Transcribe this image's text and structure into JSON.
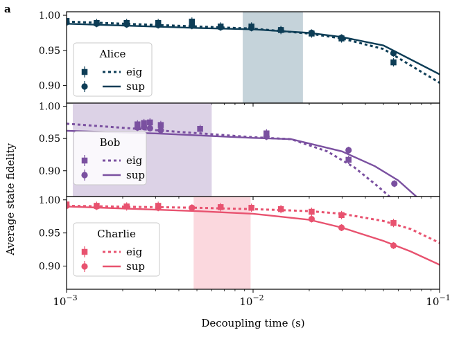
{
  "panel_label": "a",
  "chart_data": {
    "type": "line",
    "shared_x": {
      "label": "Decoupling time (s)",
      "scale": "log",
      "xlim": [
        0.001,
        0.1
      ],
      "ticks": [
        {
          "value": 0.001,
          "base": "10",
          "exp": "−3"
        },
        {
          "value": 0.01,
          "base": "10",
          "exp": "−2"
        },
        {
          "value": 0.1,
          "base": "10",
          "exp": "−1"
        }
      ]
    },
    "shared_ylabel": "Average state fidelity",
    "legend": {
      "position": "left",
      "entry_labels": [
        "eig",
        "sup"
      ]
    },
    "panels": [
      {
        "name": "Alice",
        "color": "#0d3d56",
        "shade_color": "#c5d3da",
        "shaded_x": [
          0.0088,
          0.0185
        ],
        "ylim": [
          0.875,
          1.005
        ],
        "yticks": [
          "1.00",
          "0.95",
          "0.90"
        ],
        "ytick_values": [
          1.0,
          0.95,
          0.9
        ],
        "eig_line": {
          "x": [
            0.001,
            0.005,
            0.01,
            0.02,
            0.03,
            0.05,
            0.1
          ],
          "y": [
            0.991,
            0.984,
            0.981,
            0.974,
            0.967,
            0.952,
            0.904
          ]
        },
        "sup_line": {
          "x": [
            0.001,
            0.005,
            0.01,
            0.02,
            0.03,
            0.05,
            0.1
          ],
          "y": [
            0.988,
            0.982,
            0.98,
            0.975,
            0.969,
            0.957,
            0.916
          ]
        },
        "eig_points": {
          "x": [
            0.001,
            0.00145,
            0.0021,
            0.0031,
            0.0047,
            0.0067,
            0.0098,
            0.0141,
            0.0206,
            0.0298,
            0.0566
          ],
          "y": [
            0.992,
            0.989,
            0.989,
            0.989,
            0.991,
            0.984,
            0.984,
            0.979,
            0.974,
            0.967,
            0.933
          ]
        },
        "sup_points": {
          "x": [
            0.001,
            0.00145,
            0.0021,
            0.0031,
            0.0047,
            0.0067,
            0.0098,
            0.0141,
            0.0206,
            0.0298,
            0.0566
          ],
          "y": [
            0.99,
            0.988,
            0.987,
            0.986,
            0.985,
            0.983,
            0.982,
            0.979,
            0.975,
            0.968,
            0.946
          ]
        }
      },
      {
        "name": "Bob",
        "color": "#7a50a0",
        "shade_color": "#dcd2e6",
        "shaded_x": [
          0.00108,
          0.006
        ],
        "ylim": [
          0.86,
          1.005
        ],
        "yticks": [
          "1.00",
          "0.95",
          "0.90"
        ],
        "ytick_values": [
          1.0,
          0.95,
          0.9
        ],
        "eig_line": {
          "x": [
            0.001,
            0.003,
            0.01,
            0.016,
            0.025,
            0.035,
            0.047,
            0.06
          ],
          "y": [
            0.973,
            0.963,
            0.952,
            0.949,
            0.93,
            0.905,
            0.875,
            0.848
          ]
        },
        "sup_line": {
          "x": [
            0.001,
            0.003,
            0.01,
            0.016,
            0.03,
            0.045,
            0.06,
            0.075,
            0.09
          ],
          "y": [
            0.962,
            0.958,
            0.951,
            0.949,
            0.93,
            0.907,
            0.885,
            0.86,
            0.835
          ]
        },
        "eig_points": {
          "x": [
            0.0024,
            0.0026,
            0.0028,
            0.0032,
            0.0052,
            0.0118,
            0.0325
          ],
          "y": [
            0.972,
            0.974,
            0.975,
            0.971,
            0.965,
            0.958,
            0.917
          ]
        },
        "sup_points": {
          "x": [
            0.0024,
            0.0026,
            0.0028,
            0.0032,
            0.0118,
            0.0325,
            0.0572
          ],
          "y": [
            0.967,
            0.968,
            0.966,
            0.963,
            0.953,
            0.932,
            0.88
          ]
        }
      },
      {
        "name": "Charlie",
        "color": "#e8526f",
        "shade_color": "#fbd8de",
        "shaded_x": [
          0.0048,
          0.0097
        ],
        "ylim": [
          0.865,
          1.005
        ],
        "yticks": [
          "1.00",
          "0.95",
          "0.90"
        ],
        "ytick_values": [
          1.0,
          0.95,
          0.9
        ],
        "eig_line": {
          "x": [
            0.001,
            0.005,
            0.01,
            0.02,
            0.03,
            0.05,
            0.07,
            0.1
          ],
          "y": [
            0.991,
            0.988,
            0.986,
            0.983,
            0.979,
            0.968,
            0.956,
            0.935
          ]
        },
        "sup_line": {
          "x": [
            0.001,
            0.005,
            0.01,
            0.02,
            0.03,
            0.05,
            0.07,
            0.1
          ],
          "y": [
            0.99,
            0.983,
            0.979,
            0.97,
            0.958,
            0.938,
            0.922,
            0.902
          ]
        },
        "eig_points": {
          "x": [
            0.001,
            0.00145,
            0.0021,
            0.0031,
            0.0067,
            0.0098,
            0.0141,
            0.0206,
            0.0298,
            0.0566
          ],
          "y": [
            0.993,
            0.991,
            0.99,
            0.991,
            0.989,
            0.988,
            0.986,
            0.982,
            0.977,
            0.965
          ]
        },
        "sup_points": {
          "x": [
            0.001,
            0.00145,
            0.0031,
            0.0047,
            0.0206,
            0.0298,
            0.0566
          ],
          "y": [
            0.991,
            0.99,
            0.988,
            0.988,
            0.971,
            0.958,
            0.931
          ]
        }
      }
    ]
  }
}
